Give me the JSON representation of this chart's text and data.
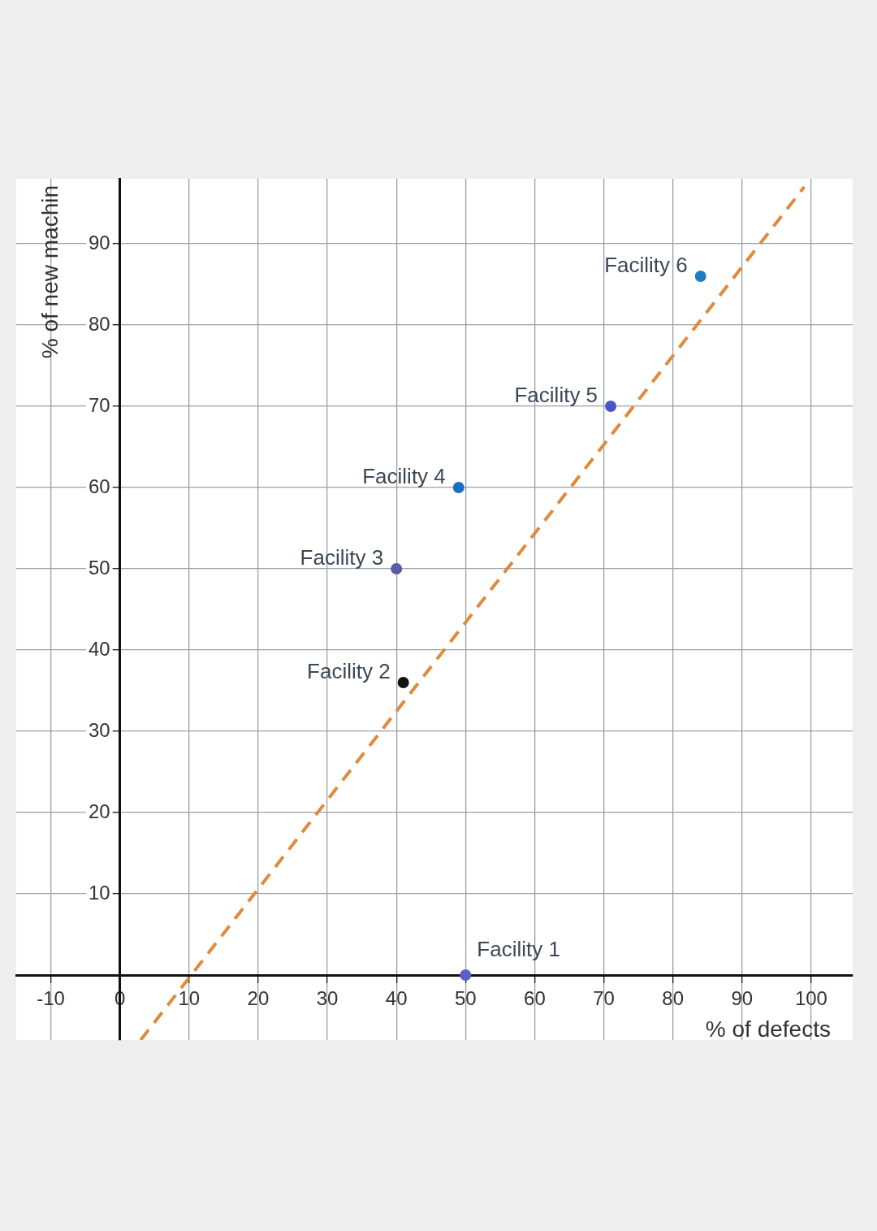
{
  "chart_data": {
    "type": "scatter",
    "xlabel": "% of defects",
    "ylabel": "% of new machin",
    "xlim": [
      -15,
      106
    ],
    "ylim": [
      -8,
      98
    ],
    "xticks": [
      -10,
      0,
      10,
      20,
      30,
      40,
      50,
      60,
      70,
      80,
      90,
      100
    ],
    "yticks": [
      10,
      20,
      30,
      40,
      50,
      60,
      70,
      80,
      90
    ],
    "grid": true,
    "marker": "circle",
    "series": [
      {
        "name": "Facility 1",
        "color": "#5b5fc7",
        "x": [
          50
        ],
        "values": [
          0
        ]
      },
      {
        "name": "Facility 2",
        "color": "#111111",
        "x": [
          41
        ],
        "values": [
          36
        ]
      },
      {
        "name": "Facility 3",
        "color": "#5a5ca8",
        "x": [
          40
        ],
        "values": [
          50
        ]
      },
      {
        "name": "Facility 4",
        "color": "#1a6fc4",
        "x": [
          49
        ],
        "values": [
          60
        ]
      },
      {
        "name": "Facility 5",
        "color": "#4a56c4",
        "x": [
          71
        ],
        "values": [
          70
        ]
      },
      {
        "name": "Facility 6",
        "color": "#1f7cc2",
        "x": [
          84
        ],
        "values": [
          86
        ]
      },
      {
        "type": "line",
        "color": "#e08a3c",
        "x": [
          3,
          99
        ],
        "values": [
          -8,
          97
        ],
        "line_style": "dashed",
        "marker": "none"
      }
    ]
  }
}
